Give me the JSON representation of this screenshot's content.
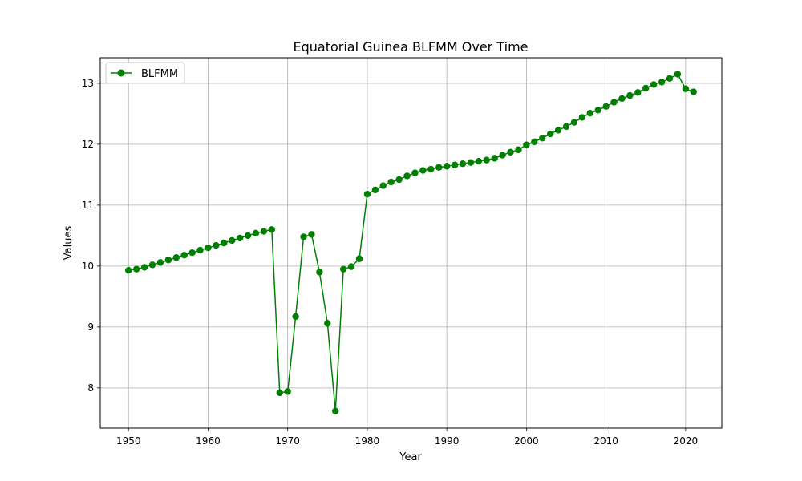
{
  "chart_data": {
    "type": "line",
    "title": "Equatorial Guinea BLFMM Over Time",
    "xlabel": "Year",
    "ylabel": "Values",
    "xlim": [
      1946.45,
      2024.55
    ],
    "ylim": [
      7.34,
      13.42
    ],
    "xticks": [
      1950,
      1960,
      1970,
      1980,
      1990,
      2000,
      2010,
      2020
    ],
    "yticks": [
      8,
      9,
      10,
      11,
      12,
      13
    ],
    "grid": true,
    "legend": {
      "position": "top-left",
      "entries": [
        "BLFMM"
      ]
    },
    "series": [
      {
        "name": "BLFMM",
        "color": "#008000",
        "marker": "circle",
        "x": [
          1950,
          1951,
          1952,
          1953,
          1954,
          1955,
          1956,
          1957,
          1958,
          1959,
          1960,
          1961,
          1962,
          1963,
          1964,
          1965,
          1966,
          1967,
          1968,
          1969,
          1970,
          1971,
          1972,
          1973,
          1974,
          1975,
          1976,
          1977,
          1978,
          1979,
          1980,
          1981,
          1982,
          1983,
          1984,
          1985,
          1986,
          1987,
          1988,
          1989,
          1990,
          1991,
          1992,
          1993,
          1994,
          1995,
          1996,
          1997,
          1998,
          1999,
          2000,
          2001,
          2002,
          2003,
          2004,
          2005,
          2006,
          2007,
          2008,
          2009,
          2010,
          2011,
          2012,
          2013,
          2014,
          2015,
          2016,
          2017,
          2018,
          2019,
          2020,
          2021
        ],
        "y": [
          9.93,
          9.95,
          9.98,
          10.02,
          10.06,
          10.1,
          10.14,
          10.18,
          10.22,
          10.26,
          10.3,
          10.34,
          10.38,
          10.42,
          10.46,
          10.5,
          10.54,
          10.57,
          10.6,
          7.92,
          7.94,
          9.17,
          10.48,
          10.52,
          9.9,
          9.06,
          7.62,
          9.95,
          9.99,
          10.12,
          11.18,
          11.25,
          11.32,
          11.38,
          11.42,
          11.48,
          11.53,
          11.57,
          11.59,
          11.62,
          11.64,
          11.66,
          11.68,
          11.7,
          11.72,
          11.74,
          11.77,
          11.82,
          11.87,
          11.91,
          11.99,
          12.04,
          12.1,
          12.17,
          12.23,
          12.29,
          12.36,
          12.44,
          12.51,
          12.56,
          12.62,
          12.69,
          12.75,
          12.8,
          12.85,
          12.92,
          12.98,
          13.02,
          13.08,
          13.15,
          12.91,
          12.86
        ]
      }
    ]
  }
}
